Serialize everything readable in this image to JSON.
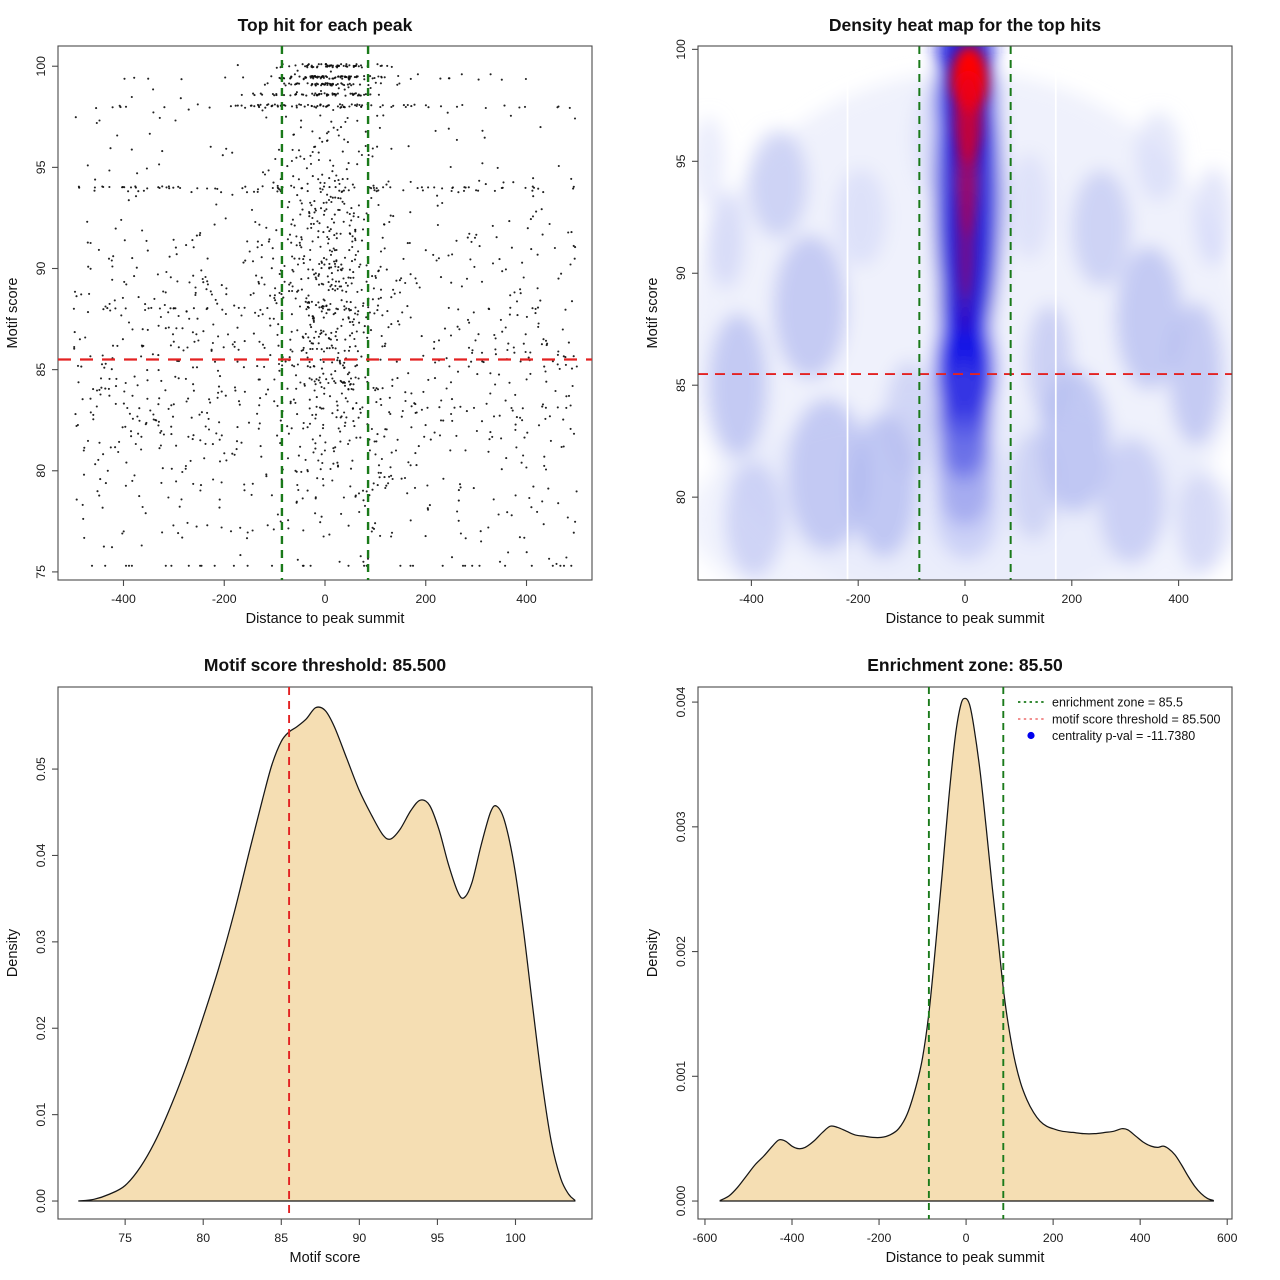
{
  "figure": {
    "background": "#ffffff",
    "accent_colors": {
      "threshold_red": "#e32222",
      "zone_green": "#1a7a1a",
      "legend_red": "#f08080",
      "legend_blue": "#0000ee",
      "density_fill": "#f5deb3",
      "heat_blue": "#2525dc",
      "heat_red": "#ff0000"
    }
  },
  "chart_data": [
    {
      "type": "scatter",
      "title": "Top hit for each peak",
      "xlabel": "Distance to peak summit",
      "ylabel": "Motif score",
      "xlim": [
        -530,
        530
      ],
      "ylim": [
        74.6,
        101.0
      ],
      "xtick_vals": [
        -400,
        -200,
        0,
        200,
        400
      ],
      "xtick_labels": [
        "-400",
        "-200",
        "0",
        "200",
        "400"
      ],
      "ytick_vals": [
        75,
        80,
        85,
        90,
        95,
        100
      ],
      "ytick_labels": [
        "75",
        "80",
        "85",
        "90",
        "95",
        "100"
      ],
      "grid": false,
      "hline": {
        "value": 85.5,
        "color": "#e32222",
        "dash": "13 9",
        "width": 2.2
      },
      "vlines": {
        "values": [
          -85.5,
          85.5
        ],
        "color": "#1a7a1a",
        "dash": "8 6",
        "width": 2.4
      },
      "n_points_approx": 2000,
      "point_color": "#0a0a0a",
      "point_radius": 1.05,
      "point_opacity": 0.9,
      "generator": {
        "seed": 42,
        "components": [
          {
            "n": 1050,
            "x": {
              "dist": "uniform",
              "min": -500,
              "max": 500
            },
            "y": {
              "dist": "normal",
              "mean": 85.2,
              "sd": 5.7,
              "min": 75.3,
              "max": 99.6
            }
          },
          {
            "n": 520,
            "x": {
              "dist": "normal",
              "mean": 5,
              "sd": 58,
              "min": -495,
              "max": 495
            },
            "y": {
              "dist": "normal",
              "mean": 89.5,
              "sd": 5.2,
              "min": 75.5,
              "max": 100.1
            }
          },
          {
            "n": 46,
            "x": {
              "dist": "normal",
              "mean": 20,
              "sd": 55,
              "min": -480,
              "max": 480
            },
            "y": {
              "dist": "const",
              "value": 100.0,
              "jitter": 0.06
            }
          },
          {
            "n": 70,
            "x": {
              "dist": "normal",
              "mean": 10,
              "sd": 62,
              "min": -480,
              "max": 480
            },
            "y": {
              "dist": "const",
              "value": 99.45,
              "jitter": 0.07
            }
          },
          {
            "n": 18,
            "x": {
              "dist": "uniform",
              "min": -470,
              "max": 470
            },
            "y": {
              "dist": "const",
              "value": 99.4,
              "jitter": 0.07
            }
          },
          {
            "n": 48,
            "x": {
              "dist": "normal",
              "mean": 0,
              "sd": 52,
              "min": -460,
              "max": 460
            },
            "y": {
              "dist": "const",
              "value": 99.1,
              "jitter": 0.06
            }
          },
          {
            "n": 55,
            "x": {
              "dist": "normal",
              "mean": 0,
              "sd": 60,
              "min": -470,
              "max": 470
            },
            "y": {
              "dist": "const",
              "value": 98.6,
              "jitter": 0.06
            }
          },
          {
            "n": 60,
            "x": {
              "dist": "normal",
              "mean": 0,
              "sd": 110,
              "min": -490,
              "max": 490
            },
            "y": {
              "dist": "const",
              "value": 98.05,
              "jitter": 0.07
            }
          },
          {
            "n": 28,
            "x": {
              "dist": "uniform",
              "min": -490,
              "max": 490
            },
            "y": {
              "dist": "const",
              "value": 98.0,
              "jitter": 0.07
            }
          },
          {
            "n": 58,
            "x": {
              "dist": "uniform",
              "min": -500,
              "max": 500
            },
            "y": {
              "dist": "const",
              "value": 94.0,
              "jitter": 0.06
            }
          },
          {
            "n": 26,
            "x": {
              "dist": "uniform",
              "min": -480,
              "max": 480
            },
            "y": {
              "dist": "const",
              "value": 93.82,
              "jitter": 0.05
            }
          },
          {
            "n": 16,
            "x": {
              "dist": "uniform",
              "min": -455,
              "max": -140
            },
            "y": {
              "dist": "const",
              "value": 88.0,
              "jitter": 0.06
            }
          },
          {
            "n": 14,
            "x": {
              "dist": "uniform",
              "min": -470,
              "max": 480
            },
            "y": {
              "dist": "const",
              "value": 88.0,
              "jitter": 0.07
            }
          }
        ]
      }
    },
    {
      "type": "heatmap",
      "title": "Density heat map for the top hits",
      "xlabel": "Distance to peak summit",
      "ylabel": "Motif score",
      "xlim": [
        -500,
        500
      ],
      "ylim": [
        76.3,
        100.15
      ],
      "xtick_vals": [
        -400,
        -200,
        0,
        200,
        400
      ],
      "xtick_labels": [
        "-400",
        "-200",
        "0",
        "200",
        "400"
      ],
      "ytick_vals": [
        80,
        85,
        90,
        95,
        100
      ],
      "ytick_labels": [
        "80",
        "85",
        "90",
        "95",
        "100"
      ],
      "hotspot": {
        "x": 5,
        "y": 98.6
      },
      "dense_column_x_range": [
        -85,
        85
      ],
      "hline": {
        "value": 85.5,
        "color": "#e32222",
        "dash": "10 7",
        "width": 1.9
      },
      "vlines": {
        "values": [
          -85.5,
          85.5
        ],
        "color": "#1a7a1a",
        "dash": "8 6",
        "width": 2.0
      },
      "white_lines": {
        "values": [
          -220,
          170
        ],
        "color": "#ffffff",
        "width": 1.7
      },
      "wash_blobs": [
        [
          0,
          87,
          520,
          12,
          "#e8ebfb",
          0.7
        ],
        [
          0,
          79,
          520,
          5,
          "#e8ebfb",
          0.6
        ],
        [
          -350,
          94,
          55,
          2.4,
          "#b4bbf0",
          0.55
        ],
        [
          -290,
          88.5,
          68,
          3.2,
          "#aab2ee",
          0.6
        ],
        [
          -425,
          85,
          55,
          3.2,
          "#a8b0ee",
          0.6
        ],
        [
          -448,
          91.5,
          35,
          2.2,
          "#c2c8f4",
          0.5
        ],
        [
          -258,
          81,
          75,
          3.4,
          "#a8b0ee",
          0.6
        ],
        [
          -395,
          79,
          55,
          2.6,
          "#b4bbf0",
          0.55
        ],
        [
          -152,
          80.5,
          62,
          3.2,
          "#a4adee",
          0.6
        ],
        [
          -105,
          83.5,
          45,
          2.6,
          "#b4bbf0",
          0.5
        ],
        [
          -195,
          92.5,
          48,
          2.2,
          "#ccd1f6",
          0.5
        ],
        [
          -60,
          96,
          40,
          2.4,
          "#d4d8f8",
          0.5
        ],
        [
          -480,
          95,
          30,
          2.0,
          "#d8dcf9",
          0.5
        ],
        [
          255,
          92,
          55,
          2.6,
          "#b4bbf0",
          0.55
        ],
        [
          345,
          88,
          62,
          3.2,
          "#a8b0ee",
          0.6
        ],
        [
          432,
          85.5,
          50,
          3.2,
          "#aab2ee",
          0.6
        ],
        [
          465,
          92.5,
          35,
          2.2,
          "#c6ccf5",
          0.5
        ],
        [
          205,
          82.5,
          65,
          3.2,
          "#a4adee",
          0.6
        ],
        [
          312,
          79.8,
          62,
          2.8,
          "#b0b8ef",
          0.55
        ],
        [
          442,
          78.8,
          45,
          2.2,
          "#bcc2f2",
          0.5
        ],
        [
          158,
          86,
          42,
          2.6,
          "#b0b8ef",
          0.55
        ],
        [
          362,
          95.2,
          42,
          2.0,
          "#ccd1f6",
          0.5
        ],
        [
          128,
          80.5,
          45,
          2.4,
          "#b4bbf0",
          0.5
        ],
        [
          120,
          93,
          40,
          2.4,
          "#ccd1f6",
          0.45
        ]
      ],
      "column_blobs": [
        [
          5,
          93.5,
          62,
          7.5,
          "#2525dc",
          0.92
        ],
        [
          2,
          97.6,
          57,
          3.0,
          "#1b1be2",
          0.95
        ],
        [
          0,
          89,
          48,
          4.6,
          "#2525dc",
          0.9
        ],
        [
          0,
          85.6,
          56,
          3.0,
          "#1717e6",
          0.95
        ],
        [
          -2,
          83.4,
          50,
          2.7,
          "#3d3de2",
          0.75
        ],
        [
          0,
          81.2,
          56,
          2.5,
          "#7077ea",
          0.5
        ],
        [
          3,
          79.2,
          60,
          2.0,
          "#9ba2ef",
          0.38
        ],
        [
          0,
          99.9,
          52,
          1.7,
          "#2020dc",
          0.95
        ]
      ],
      "core_blobs": [
        [
          8,
          98.6,
          34,
          1.55,
          "#ff0000",
          1
        ],
        [
          6,
          96.9,
          26,
          2.1,
          "#e6001a",
          0.8
        ],
        [
          4,
          94.6,
          21,
          3.0,
          "#c2003e",
          0.62
        ],
        [
          2,
          92.1,
          17,
          3.2,
          "#a30060",
          0.5
        ],
        [
          0,
          89.8,
          13,
          2.6,
          "#8a0072",
          0.35
        ]
      ]
    },
    {
      "type": "density",
      "title": "Motif score threshold: 85.500",
      "xlabel": "Motif score",
      "ylabel": "Density",
      "xlim": [
        70.7,
        104.9
      ],
      "ylim": [
        -0.00208,
        0.0595
      ],
      "xtick_vals": [
        75,
        80,
        85,
        90,
        95,
        100
      ],
      "xtick_labels": [
        "75",
        "80",
        "85",
        "90",
        "95",
        "100"
      ],
      "ytick_vals": [
        0.0,
        0.01,
        0.02,
        0.03,
        0.04,
        0.05
      ],
      "ytick_labels": [
        "0.00",
        "0.01",
        "0.02",
        "0.03",
        "0.04",
        "0.05"
      ],
      "fill": "#f5deb3",
      "stroke": "#161616",
      "vlines": {
        "values": [
          85.5
        ],
        "color": "#e32222",
        "dash": "8 6",
        "width": 1.9
      },
      "curve": [
        [
          72.0,
          0.0
        ],
        [
          73.0,
          0.0002
        ],
        [
          74.0,
          0.0008
        ],
        [
          75.0,
          0.0018
        ],
        [
          76.0,
          0.004
        ],
        [
          77.0,
          0.0072
        ],
        [
          78.0,
          0.0113
        ],
        [
          79.0,
          0.016
        ],
        [
          80.0,
          0.0213
        ],
        [
          81.0,
          0.027
        ],
        [
          82.0,
          0.0335
        ],
        [
          83.0,
          0.0408
        ],
        [
          83.8,
          0.0465
        ],
        [
          84.4,
          0.0505
        ],
        [
          85.0,
          0.0532
        ],
        [
          85.5,
          0.0543
        ],
        [
          86.0,
          0.0549
        ],
        [
          86.6,
          0.0558
        ],
        [
          87.2,
          0.0571
        ],
        [
          87.8,
          0.0568
        ],
        [
          88.4,
          0.0549
        ],
        [
          89.2,
          0.0512
        ],
        [
          90.0,
          0.0475
        ],
        [
          90.8,
          0.0446
        ],
        [
          91.5,
          0.0424
        ],
        [
          92.0,
          0.0419
        ],
        [
          92.6,
          0.043
        ],
        [
          93.3,
          0.0452
        ],
        [
          93.9,
          0.0464
        ],
        [
          94.5,
          0.0458
        ],
        [
          95.1,
          0.043
        ],
        [
          95.7,
          0.039
        ],
        [
          96.3,
          0.0358
        ],
        [
          96.7,
          0.0351
        ],
        [
          97.2,
          0.0368
        ],
        [
          97.8,
          0.0412
        ],
        [
          98.4,
          0.045
        ],
        [
          98.8,
          0.0457
        ],
        [
          99.3,
          0.044
        ],
        [
          99.9,
          0.039
        ],
        [
          100.5,
          0.0315
        ],
        [
          101.1,
          0.0225
        ],
        [
          101.7,
          0.0138
        ],
        [
          102.3,
          0.0068
        ],
        [
          102.9,
          0.0026
        ],
        [
          103.4,
          0.0008
        ],
        [
          103.8,
          0.0001
        ]
      ]
    },
    {
      "type": "density",
      "title": "Enrichment zone: 85.50",
      "xlabel": "Distance to peak summit",
      "ylabel": "Density",
      "xlim": [
        -616,
        611
      ],
      "ylim": [
        -0.000144,
        0.004121
      ],
      "xtick_vals": [
        -600,
        -400,
        -200,
        0,
        200,
        400,
        600
      ],
      "xtick_labels": [
        "-600",
        "-400",
        "-200",
        "0",
        "200",
        "400",
        "600"
      ],
      "ytick_vals": [
        0.0,
        0.001,
        0.002,
        0.003,
        0.004
      ],
      "ytick_labels": [
        "0.000",
        "0.001",
        "0.002",
        "0.003",
        "0.004"
      ],
      "fill": "#f5deb3",
      "stroke": "#161616",
      "vlines": {
        "values": [
          -85.5,
          85.5
        ],
        "color": "#1a7a1a",
        "dash": "7 5",
        "width": 1.9
      },
      "peak": {
        "x": -2,
        "y": 0.00403
      },
      "legend": {
        "entries": [
          {
            "swatch": "dotted-line",
            "color": "#1a7a1a",
            "label": "enrichment zone = 85.5"
          },
          {
            "swatch": "dotted-line",
            "color": "#f08080",
            "label": "motif score threshold = 85.500"
          },
          {
            "swatch": "dot",
            "color": "#0000ee",
            "label": "centrality p-val = -11.7380"
          }
        ]
      },
      "curve": [
        [
          -565,
          5e-06
        ],
        [
          -545,
          4e-05
        ],
        [
          -525,
          0.00011
        ],
        [
          -505,
          0.0002
        ],
        [
          -485,
          0.00029
        ],
        [
          -465,
          0.00036
        ],
        [
          -445,
          0.00044
        ],
        [
          -430,
          0.00049
        ],
        [
          -415,
          0.00048
        ],
        [
          -400,
          0.00044
        ],
        [
          -385,
          0.00042
        ],
        [
          -370,
          0.00043
        ],
        [
          -350,
          0.00048
        ],
        [
          -330,
          0.00055
        ],
        [
          -312,
          0.0006
        ],
        [
          -295,
          0.00059
        ],
        [
          -275,
          0.00056
        ],
        [
          -255,
          0.00053
        ],
        [
          -235,
          0.00052
        ],
        [
          -215,
          0.00051
        ],
        [
          -195,
          0.00051
        ],
        [
          -175,
          0.00053
        ],
        [
          -155,
          0.00058
        ],
        [
          -135,
          0.0007
        ],
        [
          -115,
          0.00092
        ],
        [
          -100,
          0.00115
        ],
        [
          -85,
          0.00152
        ],
        [
          -70,
          0.00205
        ],
        [
          -55,
          0.00262
        ],
        [
          -40,
          0.00322
        ],
        [
          -25,
          0.00372
        ],
        [
          -12,
          0.00398
        ],
        [
          -2,
          0.00403
        ],
        [
          8,
          0.00398
        ],
        [
          18,
          0.0038
        ],
        [
          32,
          0.00345
        ],
        [
          46,
          0.003
        ],
        [
          60,
          0.00252
        ],
        [
          74,
          0.00208
        ],
        [
          85,
          0.00172
        ],
        [
          95,
          0.00146
        ],
        [
          110,
          0.00116
        ],
        [
          125,
          0.00095
        ],
        [
          140,
          0.00081
        ],
        [
          155,
          0.00071
        ],
        [
          170,
          0.00064
        ],
        [
          185,
          0.0006
        ],
        [
          200,
          0.00058
        ],
        [
          220,
          0.00056
        ],
        [
          245,
          0.00055
        ],
        [
          270,
          0.00054
        ],
        [
          295,
          0.00054
        ],
        [
          320,
          0.00055
        ],
        [
          340,
          0.00056
        ],
        [
          358,
          0.00058
        ],
        [
          372,
          0.00057
        ],
        [
          390,
          0.00052
        ],
        [
          408,
          0.00047
        ],
        [
          425,
          0.00044
        ],
        [
          440,
          0.00043
        ],
        [
          453,
          0.00044
        ],
        [
          465,
          0.00042
        ],
        [
          480,
          0.00037
        ],
        [
          495,
          0.00029
        ],
        [
          510,
          0.0002
        ],
        [
          525,
          0.00012
        ],
        [
          540,
          6e-05
        ],
        [
          555,
          2e-05
        ],
        [
          568,
          5e-06
        ]
      ]
    }
  ]
}
